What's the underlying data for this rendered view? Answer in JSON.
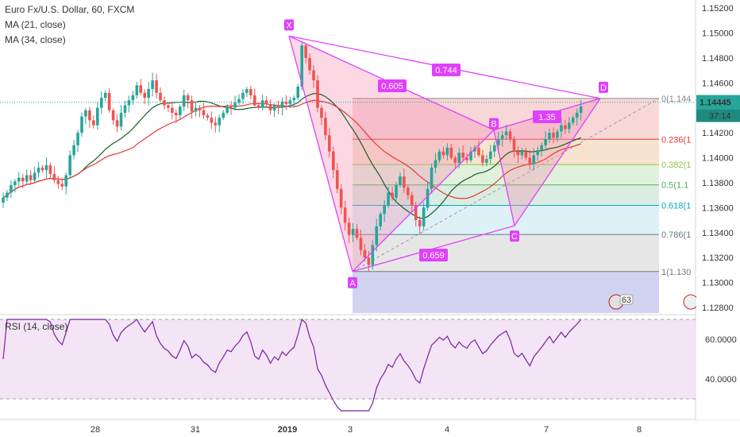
{
  "chart_data": {
    "type": "candlestick",
    "title": "Euro Fx/U.S. Dollar, 60, FXCM",
    "indicators": [
      "MA (21, close)",
      "MA (34, close)"
    ],
    "rsi_label": "RSI (14, close)",
    "x_ticks": [
      "28",
      "31",
      "2019",
      "3",
      "4",
      "7",
      "8"
    ],
    "y_ticks": [
      "1.15200",
      "1.15000",
      "1.14800",
      "1.14600",
      "1.14400",
      "1.14200",
      "1.14000",
      "1.13800",
      "1.13600",
      "1.13400",
      "1.13200",
      "1.13000",
      "1.12800"
    ],
    "ylim": [
      1.1274,
      1.1528
    ],
    "rsi_ticks": [
      "60.0000",
      "40.0000"
    ],
    "rsi_lim": [
      20,
      80
    ],
    "last_price": "1.14445",
    "countdown": "37:14",
    "fib_levels": [
      {
        "label": "0(1.144",
        "ratio": 0,
        "price": 1.14475
      },
      {
        "label": "0.236(1",
        "ratio": 0.236,
        "price": 1.14148
      },
      {
        "label": "0.382(1",
        "ratio": 0.382,
        "price": 1.13945
      },
      {
        "label": "0.5(1.1",
        "ratio": 0.5,
        "price": 1.13782
      },
      {
        "label": "0.618(1",
        "ratio": 0.618,
        "price": 1.13618
      },
      {
        "label": "0.786(1",
        "ratio": 0.786,
        "price": 1.13385
      },
      {
        "label": "1(1.130",
        "ratio": 1,
        "price": 1.13088
      }
    ],
    "pattern_points": [
      {
        "label": "X",
        "price": 1.14975
      },
      {
        "label": "A",
        "price": 1.13088
      },
      {
        "label": "B",
        "price": 1.14222
      },
      {
        "label": "C",
        "price": 1.13455
      },
      {
        "label": "D",
        "price": 1.14475
      }
    ],
    "pattern_ratios": [
      "0.605",
      "0.744",
      "1.35",
      "0.659"
    ],
    "badge_count": "63",
    "colors": {
      "up": "#26a69a",
      "down": "#ef5350",
      "ma21": "#1b5e20",
      "ma34": "#e53935",
      "pattern": "#e040fb",
      "rsi": "#7b1fa2"
    }
  }
}
